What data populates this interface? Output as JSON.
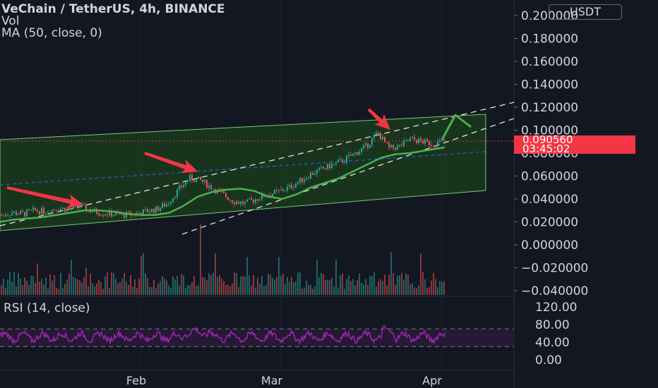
{
  "header": {
    "title": "VeChain / TetherUS, 4h, BINANCE",
    "vol_label": "Vol",
    "ma_label": "MA (50, close, 0)",
    "rsi_label": "RSI (14, close)"
  },
  "currency_button": "USDT",
  "last_price": {
    "value": "0.090560",
    "countdown": "03:45:02"
  },
  "colors": {
    "background": "#131722",
    "candle_up": "#26a69a",
    "candle_down": "#ef5350",
    "ma_line": "#4caf50",
    "channel_fill": "#1f4d1a",
    "channel_border": "#7bc96f",
    "midline": "#2962ff",
    "rsi_line": "#9c27b0",
    "rsi_band": "#2a1a3a",
    "arrow": "#f23645",
    "projection": "#4caf50",
    "price_tag": "#f23645"
  },
  "chart_data": {
    "type": "line",
    "title": "VeChain / TetherUS, 4h, BINANCE",
    "x_ticks": [
      "Feb",
      "Mar",
      "Apr"
    ],
    "price_axis": {
      "ticks": [
        "0.200000",
        "0.180000",
        "0.160000",
        "0.140000",
        "0.120000",
        "0.100000",
        "0.080000",
        "0.060000",
        "0.040000",
        "0.020000",
        "0.000000",
        "−0.020000",
        "−0.040000"
      ],
      "ylim": [
        -0.04,
        0.2
      ]
    },
    "rsi_axis": {
      "ticks": [
        "120.00",
        "80.00",
        "40.00",
        "0.00"
      ],
      "band": [
        30,
        70
      ]
    },
    "series": [
      {
        "name": "MA (50, close, 0)",
        "x": [
          0,
          20,
          40,
          60,
          80,
          100,
          120,
          140,
          160,
          180,
          200,
          220,
          240,
          260,
          280,
          300,
          320,
          340,
          360,
          380,
          400,
          420,
          440,
          460,
          480,
          500,
          520,
          540,
          560,
          580,
          600,
          620,
          630
        ],
        "values": [
          0.02,
          0.022,
          0.023,
          0.024,
          0.026,
          0.028,
          0.03,
          0.03,
          0.029,
          0.027,
          0.026,
          0.026,
          0.028,
          0.034,
          0.042,
          0.046,
          0.048,
          0.049,
          0.047,
          0.042,
          0.04,
          0.044,
          0.05,
          0.054,
          0.058,
          0.064,
          0.07,
          0.076,
          0.079,
          0.08,
          0.082,
          0.084,
          0.085
        ]
      }
    ],
    "price_close": [
      0.026,
      0.028,
      0.027,
      0.03,
      0.029,
      0.032,
      0.031,
      0.034,
      0.03,
      0.028,
      0.027,
      0.026,
      0.027,
      0.029,
      0.031,
      0.036,
      0.048,
      0.058,
      0.056,
      0.05,
      0.044,
      0.038,
      0.036,
      0.04,
      0.044,
      0.046,
      0.05,
      0.056,
      0.062,
      0.066,
      0.07,
      0.074,
      0.08,
      0.086,
      0.098,
      0.084,
      0.086,
      0.092,
      0.09,
      0.088,
      0.0905
    ]
  }
}
